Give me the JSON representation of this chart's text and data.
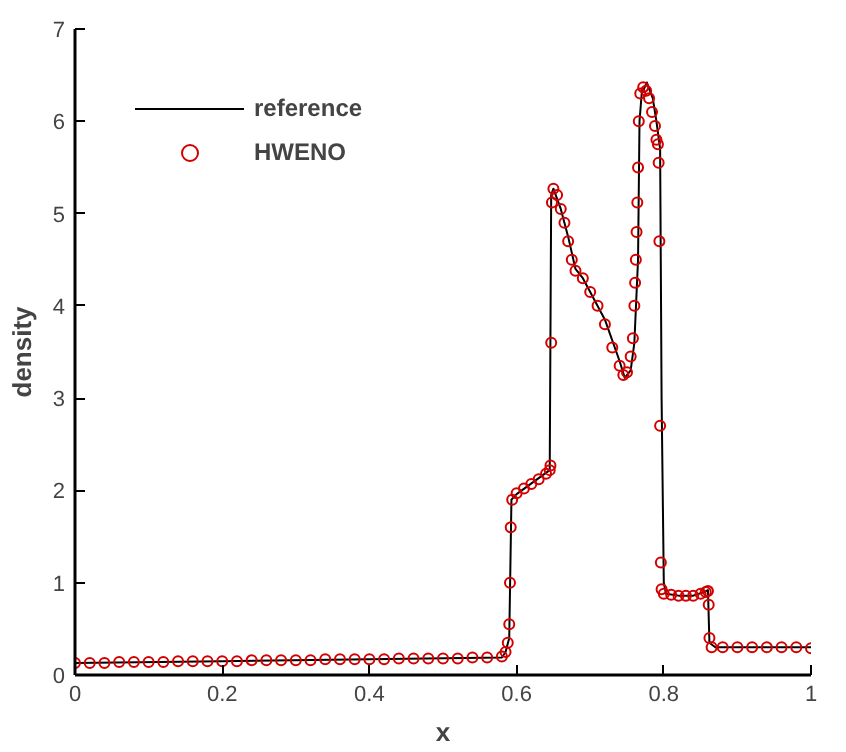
{
  "chart_data": {
    "type": "line",
    "xlabel": "x",
    "ylabel": "density",
    "xlim": [
      0,
      1
    ],
    "ylim": [
      0,
      7
    ],
    "xticks": [
      0,
      0.2,
      0.4,
      0.6,
      0.8,
      1
    ],
    "yticks": [
      0,
      1,
      2,
      3,
      4,
      5,
      6,
      7
    ],
    "grid": false,
    "legend": "top left",
    "series": [
      {
        "name": "reference",
        "color": "#000000",
        "line_style": "solid",
        "marker": "none",
        "x": [
          0,
          0.2,
          0.4,
          0.58,
          0.585,
          0.59,
          0.593,
          0.6,
          0.645,
          0.647,
          0.65,
          0.66,
          0.67,
          0.68,
          0.69,
          0.7,
          0.72,
          0.74,
          0.747,
          0.755,
          0.76,
          0.765,
          0.767,
          0.77,
          0.777,
          0.785,
          0.79,
          0.795,
          0.797,
          0.8,
          0.803,
          0.82,
          0.84,
          0.855,
          0.86,
          0.862,
          0.87,
          1
        ],
        "values": [
          0.13,
          0.15,
          0.17,
          0.19,
          0.25,
          0.4,
          1.9,
          1.96,
          2.22,
          5.2,
          5.27,
          5.05,
          4.75,
          4.4,
          4.3,
          4.15,
          3.85,
          3.4,
          3.22,
          3.3,
          3.6,
          4.5,
          6.0,
          6.3,
          6.42,
          6.25,
          6.0,
          5.7,
          3.0,
          1.0,
          0.88,
          0.86,
          0.86,
          0.9,
          0.92,
          0.35,
          0.3,
          0.3
        ]
      },
      {
        "name": "HWENO",
        "type": "scatter",
        "color": "#d40000",
        "marker": "circle",
        "x": [
          0,
          0.02,
          0.04,
          0.06,
          0.08,
          0.1,
          0.12,
          0.14,
          0.16,
          0.18,
          0.2,
          0.22,
          0.24,
          0.26,
          0.28,
          0.3,
          0.32,
          0.34,
          0.36,
          0.38,
          0.4,
          0.42,
          0.44,
          0.46,
          0.48,
          0.5,
          0.52,
          0.54,
          0.56,
          0.58,
          0.585,
          0.588,
          0.59,
          0.591,
          0.592,
          0.594,
          0.6,
          0.61,
          0.62,
          0.63,
          0.64,
          0.645,
          0.646,
          0.647,
          0.648,
          0.65,
          0.655,
          0.66,
          0.665,
          0.67,
          0.675,
          0.68,
          0.69,
          0.7,
          0.71,
          0.72,
          0.73,
          0.74,
          0.745,
          0.75,
          0.755,
          0.758,
          0.76,
          0.761,
          0.762,
          0.763,
          0.764,
          0.765,
          0.766,
          0.768,
          0.772,
          0.776,
          0.78,
          0.784,
          0.788,
          0.79,
          0.792,
          0.793,
          0.794,
          0.795,
          0.796,
          0.797,
          0.8,
          0.81,
          0.82,
          0.83,
          0.84,
          0.85,
          0.857,
          0.86,
          0.861,
          0.862,
          0.865,
          0.88,
          0.9,
          0.92,
          0.94,
          0.96,
          0.98,
          1
        ],
        "values": [
          0.13,
          0.13,
          0.13,
          0.14,
          0.14,
          0.14,
          0.14,
          0.15,
          0.15,
          0.15,
          0.15,
          0.15,
          0.16,
          0.16,
          0.16,
          0.16,
          0.16,
          0.17,
          0.17,
          0.17,
          0.17,
          0.17,
          0.18,
          0.18,
          0.18,
          0.18,
          0.18,
          0.19,
          0.19,
          0.2,
          0.25,
          0.35,
          0.55,
          1.0,
          1.6,
          1.9,
          1.97,
          2.02,
          2.07,
          2.12,
          2.18,
          2.22,
          2.27,
          3.6,
          5.12,
          5.27,
          5.2,
          5.05,
          4.9,
          4.7,
          4.5,
          4.38,
          4.3,
          4.15,
          4.0,
          3.8,
          3.55,
          3.35,
          3.25,
          3.28,
          3.45,
          3.65,
          4.0,
          4.25,
          4.5,
          4.8,
          5.12,
          5.5,
          6.0,
          6.3,
          6.37,
          6.33,
          6.25,
          6.1,
          5.95,
          5.8,
          5.75,
          5.55,
          4.7,
          2.7,
          1.22,
          0.93,
          0.88,
          0.87,
          0.86,
          0.86,
          0.86,
          0.88,
          0.9,
          0.91,
          0.76,
          0.4,
          0.3,
          0.3,
          0.3,
          0.3,
          0.3,
          0.3,
          0.3,
          0.29
        ]
      }
    ]
  }
}
